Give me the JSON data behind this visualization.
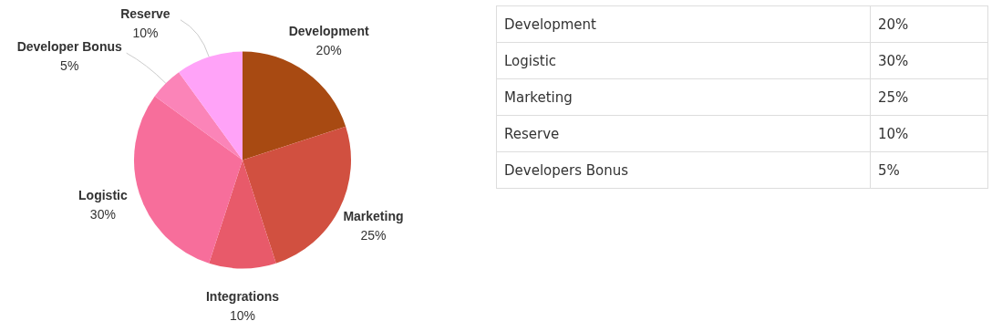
{
  "chart_data": [
    {
      "type": "pie",
      "categories": [
        "Development",
        "Marketing",
        "Integrations",
        "Logistic",
        "Developer Bonus",
        "Reserve"
      ],
      "values": [
        20,
        25,
        10,
        30,
        5,
        10
      ],
      "value_labels": [
        "20%",
        "25%",
        "10%",
        "30%",
        "5%",
        "10%"
      ],
      "colors": [
        "#a84a12",
        "#d15040",
        "#e85a6a",
        "#f76e9b",
        "#fb84b8",
        "#ffa3f8"
      ],
      "data_labels": true,
      "legend": false
    },
    {
      "type": "other",
      "categories": [
        "Development",
        "Logistic",
        "Marketing",
        "Reserve",
        "Developers Bonus"
      ],
      "value_labels": [
        "20%",
        "30%",
        "25%",
        "10%",
        "5%"
      ]
    }
  ]
}
